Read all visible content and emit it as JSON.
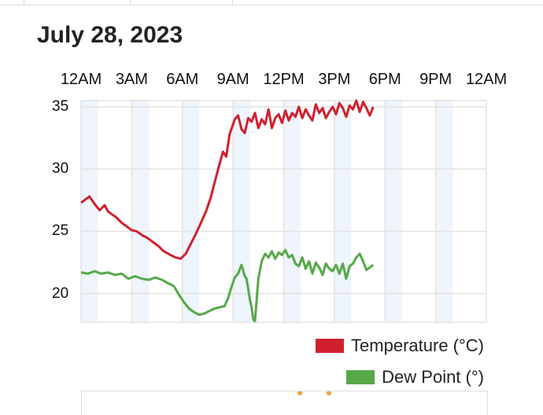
{
  "title": "July 28, 2023",
  "colors": {
    "temperature": "#d0202e",
    "dew_point": "#56a848",
    "band": "#eef5fc",
    "grid": "#e3e3e3"
  },
  "chart_data": {
    "type": "line",
    "title": "July 28, 2023",
    "xlabel": "",
    "ylabel": "",
    "x_unit": "hours after midnight",
    "x_tick_labels": [
      "12AM",
      "3AM",
      "6AM",
      "9AM",
      "12PM",
      "3PM",
      "6PM",
      "9PM",
      "12AM"
    ],
    "xlim": [
      0,
      24
    ],
    "y_tick_labels": [
      "35",
      "30",
      "25",
      "20"
    ],
    "y_ticks": [
      35,
      30,
      25,
      20
    ],
    "ylim": [
      17.7,
      35.5
    ],
    "grid": true,
    "legend_position": "bottom-right",
    "series": [
      {
        "name": "Temperature (°C)",
        "color": "#d0202e",
        "x": [
          0,
          0.3,
          0.5,
          0.8,
          1.1,
          1.4,
          1.6,
          1.8,
          2.1,
          2.4,
          2.7,
          3.0,
          3.3,
          3.6,
          3.9,
          4.2,
          4.6,
          4.9,
          5.3,
          5.6,
          5.9,
          6.2,
          6.5,
          6.8,
          7.1,
          7.4,
          7.7,
          8.0,
          8.2,
          8.4,
          8.6,
          8.8,
          8.9,
          9.1,
          9.3,
          9.5,
          9.7,
          9.9,
          10.1,
          10.3,
          10.5,
          10.7,
          10.9,
          11.1,
          11.3,
          11.5,
          11.7,
          11.9,
          12.1,
          12.3,
          12.5,
          12.7,
          12.9,
          13.1,
          13.3,
          13.5,
          13.7,
          13.9,
          14.1,
          14.3,
          14.5,
          14.7,
          14.9,
          15.1,
          15.3,
          15.5,
          15.7,
          15.9,
          16.1,
          16.3,
          16.5,
          16.7,
          16.9,
          17.1,
          17.3
        ],
        "values": [
          27.3,
          27.6,
          27.8,
          27.2,
          26.7,
          27.1,
          26.6,
          26.4,
          26.1,
          25.7,
          25.4,
          25.1,
          25.0,
          24.7,
          24.5,
          24.2,
          23.8,
          23.4,
          23.1,
          22.9,
          22.8,
          23.2,
          24.0,
          24.8,
          25.7,
          26.6,
          27.8,
          29.4,
          30.4,
          31.4,
          31.0,
          32.8,
          33.2,
          34.0,
          34.3,
          33.2,
          32.9,
          34.1,
          33.8,
          34.5,
          33.3,
          34.0,
          33.6,
          34.8,
          33.3,
          34.1,
          34.4,
          33.7,
          34.7,
          33.9,
          34.5,
          34.2,
          35.0,
          34.1,
          34.8,
          34.3,
          33.9,
          35.2,
          34.5,
          34.9,
          34.1,
          34.6,
          35.0,
          34.4,
          35.3,
          34.9,
          34.2,
          35.1,
          34.8,
          35.5,
          34.6,
          35.4,
          34.9,
          34.3,
          35.0
        ]
      },
      {
        "name": "Dew Point (°)",
        "color": "#56a848",
        "x": [
          0,
          0.4,
          0.8,
          1.2,
          1.6,
          2.0,
          2.4,
          2.8,
          3.2,
          3.6,
          4.0,
          4.4,
          4.8,
          5.2,
          5.5,
          5.8,
          6.1,
          6.4,
          6.7,
          7.0,
          7.3,
          7.6,
          7.9,
          8.2,
          8.5,
          8.7,
          8.9,
          9.1,
          9.3,
          9.5,
          9.7,
          9.8,
          9.9,
          10.0,
          10.1,
          10.2,
          10.3,
          10.5,
          10.7,
          10.9,
          11.1,
          11.3,
          11.5,
          11.7,
          11.9,
          12.1,
          12.3,
          12.5,
          12.7,
          12.9,
          13.1,
          13.3,
          13.5,
          13.7,
          13.9,
          14.1,
          14.3,
          14.5,
          14.7,
          14.9,
          15.1,
          15.3,
          15.5,
          15.7,
          15.9,
          16.1,
          16.3,
          16.5,
          16.7,
          16.9,
          17.1,
          17.3
        ],
        "values": [
          21.7,
          21.6,
          21.8,
          21.6,
          21.7,
          21.5,
          21.6,
          21.2,
          21.4,
          21.2,
          21.1,
          21.3,
          21.1,
          20.8,
          20.6,
          19.9,
          19.3,
          18.8,
          18.5,
          18.3,
          18.4,
          18.6,
          18.8,
          18.9,
          19.0,
          19.6,
          20.5,
          21.3,
          21.6,
          22.3,
          21.4,
          21.2,
          20.4,
          19.5,
          18.9,
          17.9,
          17.8,
          21.2,
          22.6,
          23.2,
          22.9,
          23.4,
          22.8,
          23.3,
          23.1,
          23.5,
          22.9,
          23.1,
          22.4,
          22.2,
          22.9,
          22.0,
          22.6,
          21.6,
          22.5,
          22.1,
          21.5,
          22.4,
          22.0,
          21.8,
          22.3,
          21.6,
          22.4,
          21.2,
          22.2,
          22.4,
          22.9,
          23.2,
          22.6,
          21.9,
          22.1,
          22.3
        ]
      }
    ]
  }
}
